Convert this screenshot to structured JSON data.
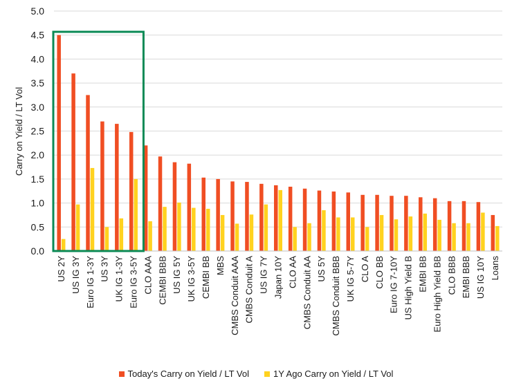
{
  "chart_data": {
    "type": "bar",
    "title": "",
    "xlabel": "",
    "ylabel": "Carry on Yield / LT Vol",
    "ylim": [
      0,
      5.0
    ],
    "yticks": [
      "0.0",
      "0.5",
      "1.0",
      "1.5",
      "2.0",
      "2.5",
      "3.0",
      "3.5",
      "4.0",
      "4.5",
      "5.0"
    ],
    "grid": true,
    "legend_position": "bottom",
    "categories": [
      "US 2Y",
      "US IG 3Y",
      "Euro IG 1-3Y",
      "US 3Y",
      "UK IG 1-3Y",
      "Euro IG 3-5Y",
      "CLO AAA",
      "CEMBI BBB",
      "US IG 5Y",
      "UK IG 3-5Y",
      "CEMBI BB",
      "MBS",
      "CMBS Conduit AAA",
      "CMBS Conduit A",
      "US IG 7Y",
      "Japan 10Y",
      "CLO AA",
      "CMBS Conduit AA",
      "US 5Y",
      "CMBS Conduit BBB",
      "UK IG 5-7Y",
      "CLO A",
      "CLO BB",
      "Euro IG 7-10Y",
      "US High Yield B",
      "EMBI BB",
      "Euro High Yield BB",
      "CLO BBB",
      "EMBI BBB",
      "US IG 10Y",
      "Loans"
    ],
    "series": [
      {
        "name": "Today's Carry on Yield / LT Vol",
        "color": "#f04e23",
        "values": [
          4.5,
          3.7,
          3.25,
          2.7,
          2.65,
          2.48,
          2.2,
          1.97,
          1.85,
          1.82,
          1.53,
          1.5,
          1.45,
          1.44,
          1.4,
          1.37,
          1.34,
          1.3,
          1.26,
          1.24,
          1.22,
          1.17,
          1.17,
          1.15,
          1.15,
          1.12,
          1.1,
          1.04,
          1.04,
          1.02,
          0.75
        ]
      },
      {
        "name": "1Y Ago Carry on Yield / LT Vol",
        "color": "#ffd21f",
        "values": [
          0.25,
          0.97,
          1.73,
          0.5,
          0.68,
          1.5,
          0.62,
          0.92,
          1.01,
          0.9,
          0.88,
          0.75,
          0.57,
          0.76,
          0.97,
          1.27,
          0.5,
          0.58,
          0.85,
          0.7,
          0.7,
          0.5,
          0.75,
          0.66,
          0.72,
          0.78,
          0.65,
          0.58,
          0.58,
          0.8,
          0.52
        ]
      }
    ],
    "highlight": {
      "from": "US 2Y",
      "to": "Euro IG 3-5Y",
      "color": "#0a8a55"
    }
  }
}
